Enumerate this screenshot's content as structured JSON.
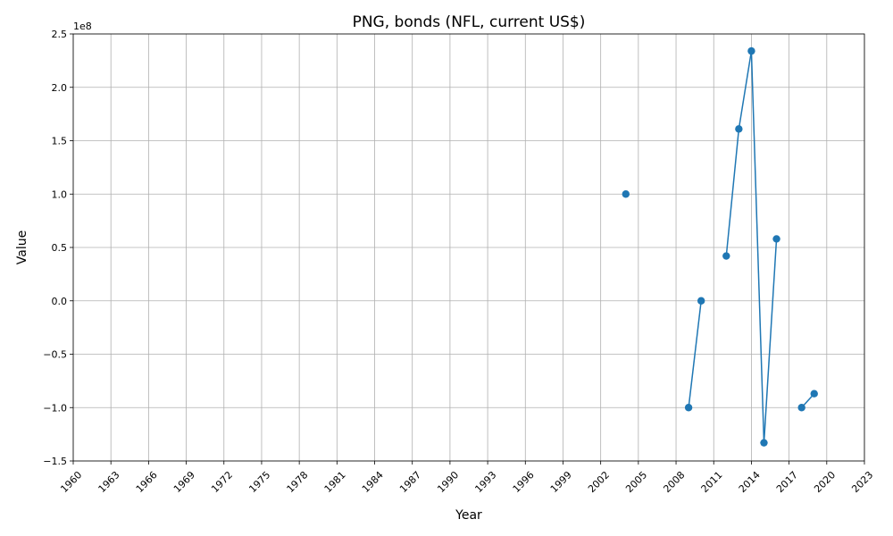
{
  "chart_data": {
    "type": "line",
    "title": "PNG, bonds (NFL, current US$)",
    "xlabel": "Year",
    "ylabel": "Value",
    "y_scale_note": "1e8",
    "xlim": [
      1960,
      2023
    ],
    "ylim": [
      -1.5,
      2.5
    ],
    "x_ticks": [
      1960,
      1963,
      1966,
      1969,
      1972,
      1975,
      1978,
      1981,
      1984,
      1987,
      1990,
      1993,
      1996,
      1999,
      2002,
      2005,
      2008,
      2011,
      2014,
      2017,
      2020,
      2023
    ],
    "y_ticks": [
      -1.5,
      -1.0,
      -0.5,
      0.0,
      0.5,
      1.0,
      1.5,
      2.0,
      2.5
    ],
    "y_tick_labels": [
      "−1.5",
      "−1.0",
      "−0.5",
      "0.0",
      "0.5",
      "1.0",
      "1.5",
      "2.0",
      "2.5"
    ],
    "grid": true,
    "series": [
      {
        "color": "#1f77b4",
        "x": [
          2004,
          2009,
          2010,
          2012,
          2013,
          2014,
          2015,
          2016,
          2018,
          2019
        ],
        "y": [
          1.0,
          -1.0,
          0.0,
          0.42,
          1.61,
          2.34,
          -1.33,
          0.58,
          -1.0,
          -0.87
        ]
      }
    ]
  }
}
